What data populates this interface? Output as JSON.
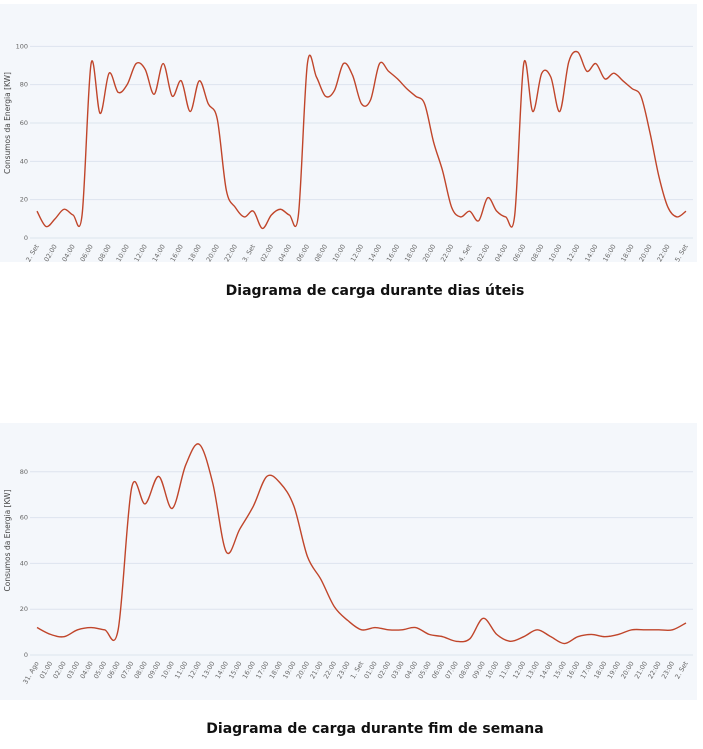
{
  "chart_data": [
    {
      "type": "line",
      "title": "Diagrama de carga durante dias úteis",
      "y_label": "Consumos da Energia [KW]",
      "categories": [
        "2. Set",
        null,
        "02:00",
        null,
        "04:00",
        null,
        "06:00",
        null,
        "08:00",
        null,
        "10:00",
        null,
        "12:00",
        null,
        "14:00",
        null,
        "16:00",
        null,
        "18:00",
        null,
        "20:00",
        null,
        "22:00",
        null,
        "3. Set",
        null,
        "02:00",
        null,
        "04:00",
        null,
        "06:00",
        null,
        "08:00",
        null,
        "10:00",
        null,
        "12:00",
        null,
        "14:00",
        null,
        "16:00",
        null,
        "18:00",
        null,
        "20:00",
        null,
        "22:00",
        null,
        "4. Set",
        null,
        "02:00",
        null,
        "04:00",
        null,
        "06:00",
        null,
        "08:00",
        null,
        "10:00",
        null,
        "12:00",
        null,
        "14:00",
        null,
        "16:00",
        null,
        "18:00",
        null,
        "20:00",
        null,
        "22:00",
        null,
        "5. Set"
      ],
      "series": [
        {
          "name": "Consumo",
          "color": "#c0452a",
          "values": [
            14,
            6,
            10,
            15,
            12,
            12,
            91,
            65,
            86,
            76,
            80,
            91,
            88,
            75,
            91,
            74,
            82,
            66,
            82,
            70,
            62,
            25,
            16,
            11,
            14,
            5,
            12,
            15,
            12,
            12,
            91,
            84,
            74,
            77,
            91,
            85,
            70,
            72,
            91,
            87,
            83,
            78,
            74,
            70,
            50,
            35,
            16,
            11,
            14,
            9,
            21,
            14,
            11,
            12,
            91,
            66,
            86,
            84,
            66,
            92,
            97,
            87,
            91,
            83,
            86,
            82,
            78,
            74,
            55,
            32,
            16,
            11,
            14
          ]
        }
      ],
      "ylim": [
        0,
        120
      ],
      "yticks": [
        0,
        20,
        40,
        60,
        80,
        100
      ],
      "grid": true
    },
    {
      "type": "line",
      "title": "Diagrama de carga durante fim de semana",
      "y_label": "Consumos da Energia [KW]",
      "categories": [
        "31. Ago",
        "01:00",
        "02:00",
        "03:00",
        "04:00",
        "05:00",
        "06:00",
        "07:00",
        "08:00",
        "09:00",
        "10:00",
        "11:00",
        "12:00",
        "13:00",
        "14:00",
        "15:00",
        "16:00",
        "17:00",
        "18:00",
        "19:00",
        "20:00",
        "21:00",
        "22:00",
        "23:00",
        "1. Set",
        "01:00",
        "02:00",
        "03:00",
        "04:00",
        "05:00",
        "06:00",
        "07:00",
        "08:00",
        "09:00",
        "10:00",
        "11:00",
        "12:00",
        "13:00",
        "14:00",
        "15:00",
        "16:00",
        "17:00",
        "18:00",
        "19:00",
        "20:00",
        "21:00",
        "22:00",
        "23:00",
        "2. Set"
      ],
      "series": [
        {
          "name": "Consumo",
          "color": "#c0452a",
          "values": [
            12,
            9,
            8,
            11,
            12,
            11,
            11,
            73,
            66,
            78,
            64,
            83,
            92,
            75,
            45,
            55,
            65,
            78,
            75,
            65,
            43,
            33,
            21,
            15,
            11,
            12,
            11,
            11,
            12,
            9,
            8,
            6,
            7,
            16,
            9,
            6,
            8,
            11,
            8,
            5,
            8,
            9,
            8,
            9,
            11,
            11,
            11,
            11,
            14
          ]
        }
      ],
      "ylim": [
        0,
        100
      ],
      "yticks": [
        0,
        20,
        40,
        60,
        80
      ],
      "grid": true
    }
  ]
}
